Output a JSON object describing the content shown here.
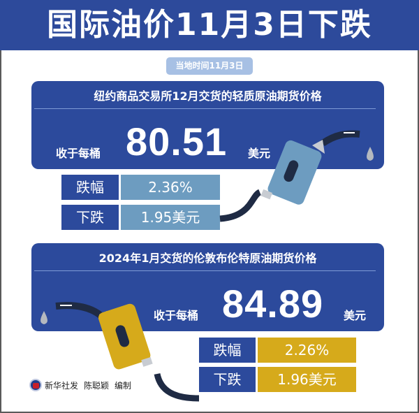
{
  "title": "国际油价11月3日下跌",
  "date_label": "当地时间11月3日",
  "colors": {
    "primary_blue": "#2c4a9c",
    "light_blue": "#6d9cc0",
    "gold": "#d6aa1b",
    "pill": "#a7c0e4"
  },
  "wti": {
    "heading": "纽约商品交易所12月交货的轻质原油期货价格",
    "close_label": "收于每桶",
    "price": "80.51",
    "unit": "美元",
    "rows": [
      {
        "label": "跌幅",
        "value": "2.36%"
      },
      {
        "label": "下跌",
        "value": "1.95美元"
      }
    ],
    "icon": "fuel-nozzle-icon"
  },
  "brent": {
    "heading": "2024年1月交货的伦敦布伦特原油期货价格",
    "close_label": "收于每桶",
    "price": "84.89",
    "unit": "美元",
    "rows": [
      {
        "label": "跌幅",
        "value": "2.26%"
      },
      {
        "label": "下跌",
        "value": "1.96美元"
      }
    ],
    "icon": "fuel-nozzle-icon"
  },
  "footer": {
    "source": "新华社发",
    "author": "陈聪颖",
    "role": "编制"
  }
}
